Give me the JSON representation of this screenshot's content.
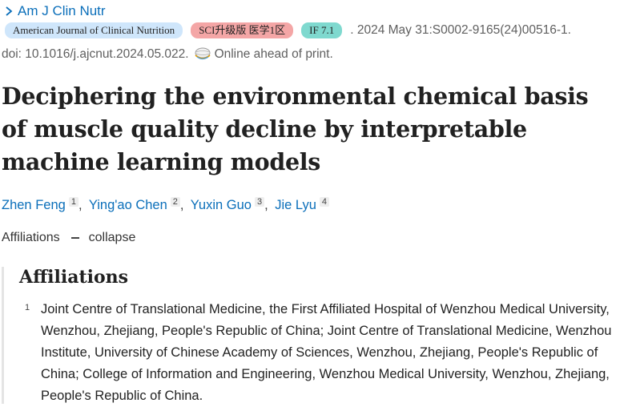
{
  "journal": {
    "abbrev": "Am J Clin Nutr"
  },
  "badges": {
    "journal_name": "American Journal of Clinical Nutrition",
    "sci_rank": "SCI升级版 医学1区",
    "impact_factor": "IF 7.1"
  },
  "citation": {
    "details": ". 2024 May 31:S0002-9165(24)00516-1.",
    "doi": "doi: 10.1016/j.ajcnut.2024.05.022.",
    "status": "Online ahead of print."
  },
  "article": {
    "title": "Deciphering the environmental chemical basis of muscle quality decline by interpretable machine learning models"
  },
  "authors": [
    {
      "name": "Zhen Feng",
      "aff": "1"
    },
    {
      "name": "Ying'ao Chen",
      "aff": "2"
    },
    {
      "name": "Yuxin Guo",
      "aff": "3"
    },
    {
      "name": "Jie Lyu",
      "aff": "4"
    }
  ],
  "affiliations_toggle": {
    "label": "Affiliations",
    "action": "collapse"
  },
  "affiliations": {
    "heading": "Affiliations",
    "items": [
      {
        "num": "1",
        "text": "Joint Centre of Translational Medicine, the First Affiliated Hospital of Wenzhou Medical University, Wenzhou, Zhejiang, People's Republic of China; Joint Centre of Translational Medicine, Wenzhou Institute, University of Chinese Academy of Sciences, Wenzhou, Zhejiang, People's Republic of China; College of Information and Engineering, Wenzhou Medical University, Wenzhou, Zhejiang, People's Republic of China."
      }
    ]
  },
  "colors": {
    "link": "#0b6fba",
    "badge_journal": "#cfe6fb",
    "badge_sci": "#f4a6a6",
    "badge_if": "#7fd9cf"
  },
  "icons": {
    "journal_chevron": "chevron-right-icon",
    "online": "online-globe-icon"
  }
}
